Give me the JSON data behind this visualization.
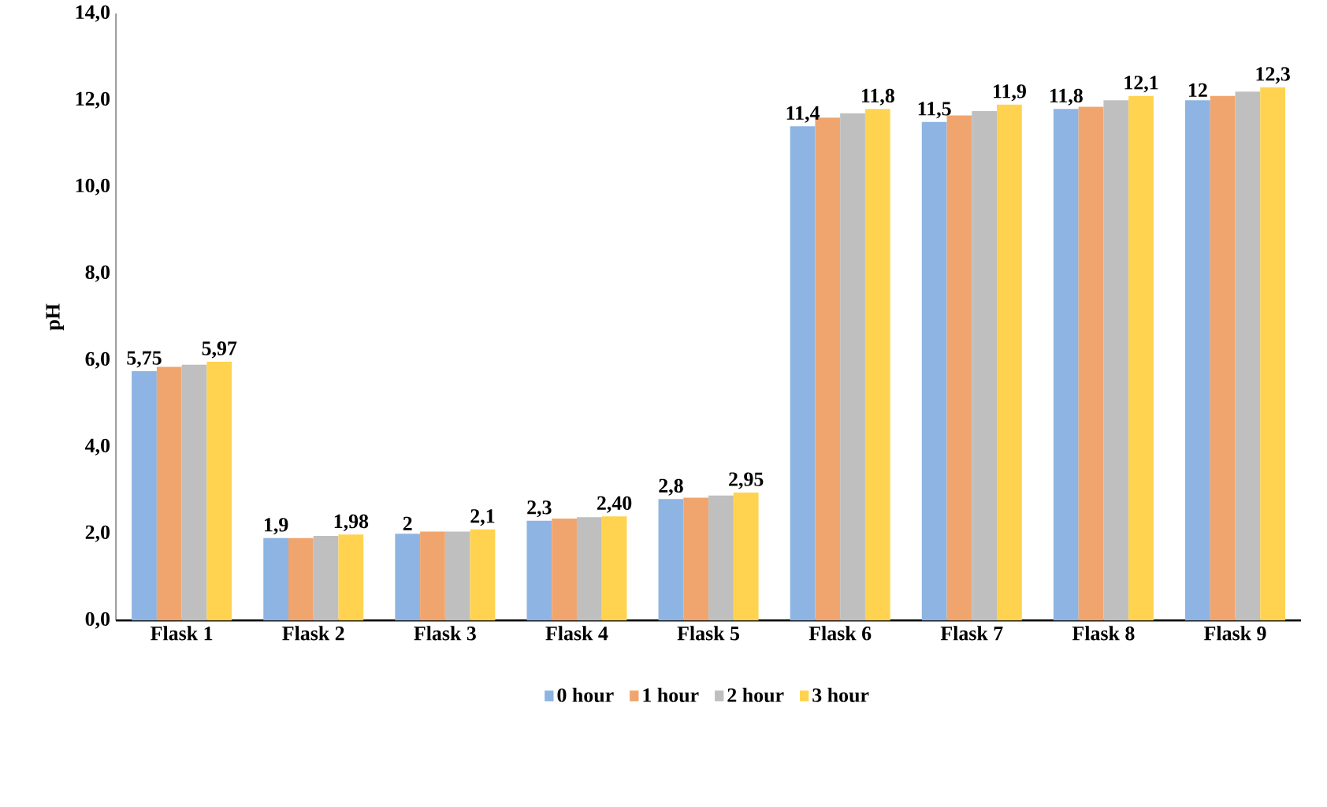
{
  "chart_data": {
    "type": "bar",
    "ylabel": "pH",
    "categories": [
      "Flask 1",
      "Flask 2",
      "Flask 3",
      "Flask 4",
      "Flask 5",
      "Flask 6",
      "Flask 7",
      "Flask 8",
      "Flask 9"
    ],
    "series": [
      {
        "name": "0 hour",
        "color": "#8db4e2",
        "values": [
          5.75,
          1.9,
          2,
          2.3,
          2.8,
          11.4,
          11.5,
          11.8,
          12
        ],
        "value_labels": [
          "5,75",
          "1,9",
          "2",
          "2,3",
          "2,8",
          "11,4",
          "11,5",
          "11,8",
          "12"
        ]
      },
      {
        "name": "1 hour",
        "color": "#f0a56e",
        "values": [
          5.85,
          1.9,
          2.05,
          2.35,
          2.83,
          11.6,
          11.65,
          11.85,
          12.1
        ]
      },
      {
        "name": "2 hour",
        "color": "#bfbfbf",
        "values": [
          5.9,
          1.95,
          2.05,
          2.38,
          2.88,
          11.7,
          11.75,
          12.0,
          12.2
        ]
      },
      {
        "name": "3 hour",
        "color": "#ffd34f",
        "values": [
          5.97,
          1.98,
          2.1,
          2.4,
          2.95,
          11.8,
          11.9,
          12.1,
          12.3
        ],
        "value_labels": [
          "5,97",
          "1,98",
          "2,1",
          "2,40",
          "2,95",
          "11,8",
          "11,9",
          "12,1",
          "12,3"
        ]
      }
    ],
    "ylim": [
      0,
      14
    ],
    "yticks": [
      {
        "value": 0,
        "label": "0,0"
      },
      {
        "value": 2,
        "label": "2,0"
      },
      {
        "value": 4,
        "label": "4,0"
      },
      {
        "value": 6,
        "label": "6,0"
      },
      {
        "value": 8,
        "label": "8,0"
      },
      {
        "value": 10,
        "label": "10,0"
      },
      {
        "value": 12,
        "label": "12,0"
      },
      {
        "value": 14,
        "label": "14,0"
      }
    ],
    "legend": "bottom",
    "grid": false
  }
}
